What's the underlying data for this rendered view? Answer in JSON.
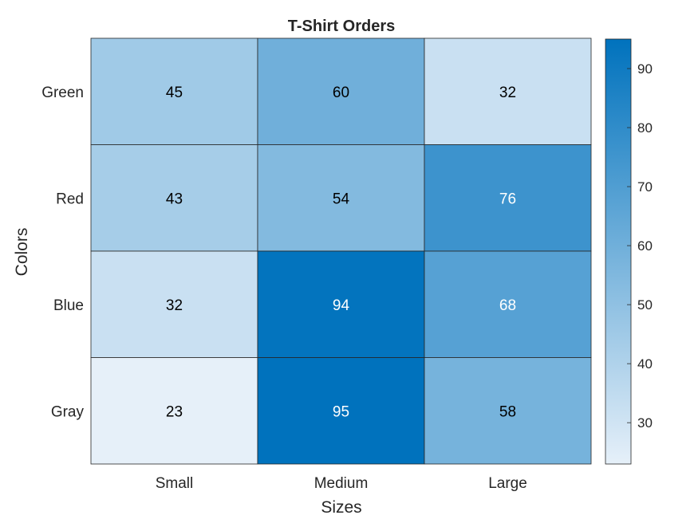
{
  "chart_data": {
    "type": "heatmap",
    "title": "T-Shirt Orders",
    "xlabel": "Sizes",
    "ylabel": "Colors",
    "x_categories": [
      "Small",
      "Medium",
      "Large"
    ],
    "y_categories": [
      "Green",
      "Red",
      "Blue",
      "Gray"
    ],
    "values": [
      [
        45,
        60,
        32
      ],
      [
        43,
        54,
        76
      ],
      [
        32,
        94,
        68
      ],
      [
        23,
        95,
        58
      ]
    ],
    "color_range": [
      23,
      95
    ],
    "colormap": {
      "low": "#e6f0f9",
      "high": "#0072bd"
    },
    "colorbar": {
      "ticks": [
        30,
        40,
        50,
        60,
        70,
        80,
        90
      ],
      "tick_labels": [
        "30",
        "40",
        "50",
        "60",
        "70",
        "80",
        "90"
      ]
    },
    "grid_color": "#262626",
    "label_dark_color": "#000000",
    "label_light_color": "#ffffff"
  }
}
